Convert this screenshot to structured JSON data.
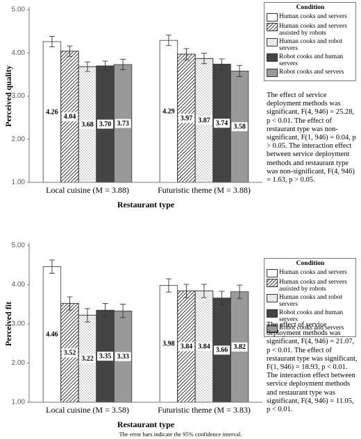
{
  "chart_data": [
    {
      "type": "bar",
      "y_label": "Perceived quality",
      "x_label": "Restaurant type",
      "categories": [
        "Local cuisine (M = 3.88)",
        "Futuristic theme (M = 3.88)"
      ],
      "legend_title": "Condition",
      "series": [
        {
          "name": "Human cooks and servers",
          "color": "#ffffff",
          "values": [
            4.26,
            4.29
          ],
          "value_labels": [
            "4.26",
            "4.29"
          ],
          "errors": [
            0.12,
            0.12
          ]
        },
        {
          "name": "Human cooks and servers assisted by robots",
          "color": "#ffffff",
          "pattern": "diagonal",
          "values": [
            4.04,
            3.97
          ],
          "value_labels": [
            "4.04",
            "3.97"
          ],
          "errors": [
            0.12,
            0.13
          ]
        },
        {
          "name": "Human cooks and robot servers",
          "color": "#ffffff",
          "pattern": "dots",
          "values": [
            3.68,
            3.87
          ],
          "value_labels": [
            "3.68",
            "3.87"
          ],
          "errors": [
            0.11,
            0.12
          ]
        },
        {
          "name": "Robot cooks and human servers",
          "color": "#444444",
          "values": [
            3.7,
            3.74
          ],
          "value_labels": [
            "3.70",
            "3.74"
          ],
          "errors": [
            0.11,
            0.12
          ]
        },
        {
          "name": "Robot cooks and servers",
          "color": "#999999",
          "values": [
            3.73,
            3.58
          ],
          "value_labels": [
            "3.73",
            "3.58"
          ],
          "errors": [
            0.12,
            0.13
          ]
        }
      ],
      "ylim": [
        1,
        5
      ],
      "yticks": [
        {
          "value": 1,
          "label": "1.00"
        },
        {
          "value": 2,
          "label": "2.00"
        },
        {
          "value": 3,
          "label": "3.00"
        },
        {
          "value": 4,
          "label": "4.00"
        },
        {
          "value": 5,
          "label": "5.00"
        }
      ],
      "annotation": "The effect of service deployment methods was significant, F(4, 946) = 25.28, p < 0.01. The effect of restaurant type was non-significant, F(1, 946) = 0.04, p > 0.05. The interaction effect between service deployment methods and restaurant type was non-significant, F(4, 946) = 1.63, p > 0.05."
    },
    {
      "type": "bar",
      "y_label": "Perceived fit",
      "x_label": "Restaurant type",
      "categories": [
        "Local cuisine (M = 3.58)",
        "Futuristic theme (M = 3.83)"
      ],
      "legend_title": "Condition",
      "series": [
        {
          "name": "Human cooks and servers",
          "color": "#ffffff",
          "values": [
            4.46,
            3.98
          ],
          "value_labels": [
            "4.46",
            "3.98"
          ],
          "errors": [
            0.17,
            0.17
          ]
        },
        {
          "name": "Human cooks and servers assisted by robots",
          "color": "#ffffff",
          "pattern": "diagonal",
          "values": [
            3.52,
            3.84
          ],
          "value_labels": [
            "3.52",
            "3.84"
          ],
          "errors": [
            0.17,
            0.17
          ]
        },
        {
          "name": "Human cooks and robot servers",
          "color": "#ffffff",
          "pattern": "dots",
          "values": [
            3.22,
            3.84
          ],
          "value_labels": [
            "3.22",
            "3.84"
          ],
          "errors": [
            0.17,
            0.17
          ]
        },
        {
          "name": "Robot cooks and human servers",
          "color": "#444444",
          "values": [
            3.35,
            3.66
          ],
          "value_labels": [
            "3.35",
            "3.66"
          ],
          "errors": [
            0.17,
            0.17
          ]
        },
        {
          "name": "Robot cooks and servers",
          "color": "#999999",
          "values": [
            3.33,
            3.82
          ],
          "value_labels": [
            "3.33",
            "3.82"
          ],
          "errors": [
            0.17,
            0.17
          ]
        }
      ],
      "ylim": [
        1,
        5
      ],
      "yticks": [
        {
          "value": 1,
          "label": "1.00"
        },
        {
          "value": 2,
          "label": "2.00"
        },
        {
          "value": 3,
          "label": "3.00"
        },
        {
          "value": 4,
          "label": "4.00"
        },
        {
          "value": 5,
          "label": "5.00"
        }
      ],
      "annotation": "The effect of service deployment methods was significant, F(4, 946) = 21.07, p < 0.01. The effect of restaurant type was significant, F(1, 946) = 18.93, p < 0.01. The interaction effect between service deployment methods and restaurant type was significant, F(4, 946) = 11.05, p < 0.01."
    }
  ],
  "footnote": "The error bars indicate the 95% confidence interval."
}
